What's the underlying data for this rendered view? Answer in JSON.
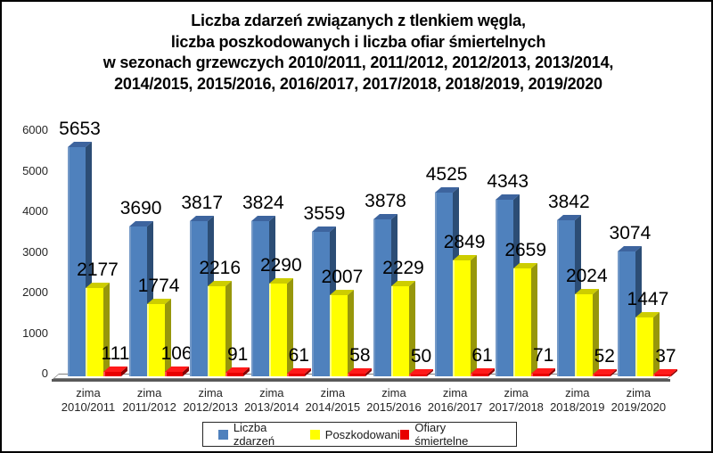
{
  "frame": {
    "background": "#ffffff",
    "border_color": "#000000"
  },
  "title": {
    "color": "#000000",
    "lines": [
      "Liczba zdarzeń związanych z tlenkiem węgla,",
      "liczba poszkodowanych i liczba ofiar śmiertelnych",
      "w sezonach grzewczych 2010/2011, 2011/2012, 2012/2013, 2013/2014,",
      "2014/2015, 2015/2016, 2016/2017, 2017/2018, 2018/2019, 2019/2020"
    ]
  },
  "chart_data": {
    "type": "bar",
    "style": "3d-clustered-column",
    "categories_prefix": "zima",
    "categories": [
      "2010/2011",
      "2011/2012",
      "2012/2013",
      "2013/2014",
      "2014/2015",
      "2015/2016",
      "2016/2017",
      "2017/2018",
      "2018/2019",
      "2019/2020"
    ],
    "series": [
      {
        "name": "Liczba zdarzeń",
        "color": "#4F81BD",
        "side_color": "#2C4D75",
        "top_color": "#3D649E",
        "edge_color": "#7499C7",
        "values": [
          5653,
          3690,
          3817,
          3824,
          3559,
          3878,
          4525,
          4343,
          3842,
          3074
        ]
      },
      {
        "name": "Poszkodowani",
        "color": "#FFFF00",
        "side_color": "#97970B",
        "top_color": "#CDCD00",
        "edge_color": "#FFFF8C",
        "values": [
          2177,
          1774,
          2216,
          2290,
          2007,
          2229,
          2849,
          2659,
          2024,
          1447
        ]
      },
      {
        "name": "Ofiary śmiertelne",
        "color": "#E80000",
        "side_color": "#8B0000",
        "top_color": "#FF1A1A",
        "edge_color": "#FF5050",
        "values": [
          111,
          106,
          91,
          61,
          58,
          50,
          61,
          71,
          52,
          37
        ]
      }
    ],
    "yticks": [
      0,
      1000,
      2000,
      3000,
      4000,
      5000,
      6000
    ],
    "ylim": [
      0,
      6000
    ],
    "grid": false,
    "data_labels": true,
    "legend_position": "bottom"
  }
}
